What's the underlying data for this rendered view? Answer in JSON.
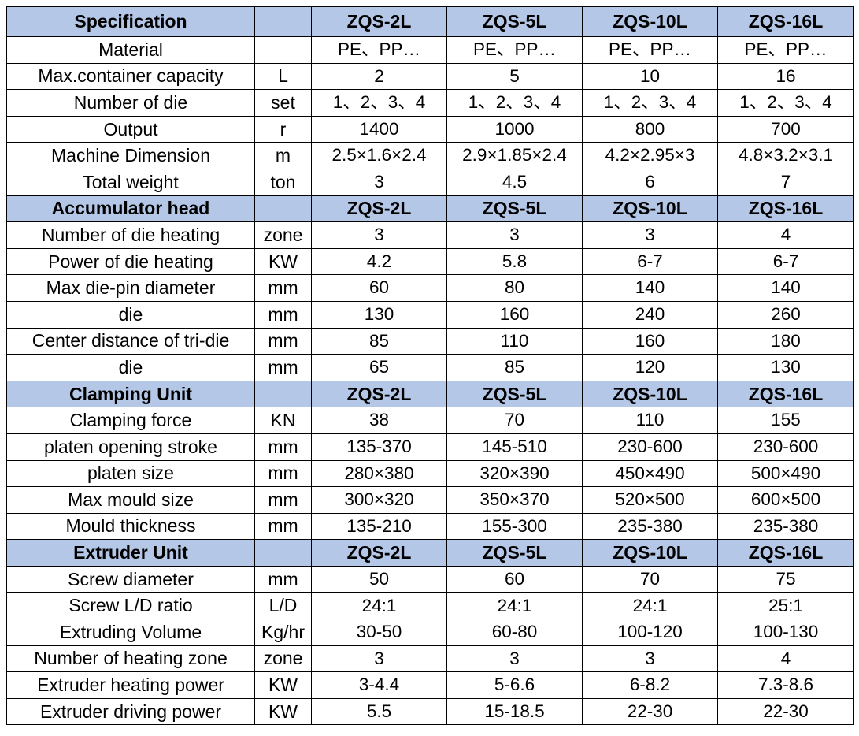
{
  "colors": {
    "header_bg": "#b4c7e7",
    "border": "#000000",
    "text": "#000000"
  },
  "sections": [
    {
      "title": "Specification",
      "unit": "",
      "models": [
        "ZQS-2L",
        "ZQS-5L",
        "ZQS-10L",
        "ZQS-16L"
      ],
      "rows": [
        {
          "param": "Material",
          "unit": "",
          "values": [
            "PE、PP…",
            "PE、PP…",
            "PE、PP…",
            "PE、PP…"
          ]
        },
        {
          "param": "Max.container capacity",
          "unit": "L",
          "values": [
            "2",
            "5",
            "10",
            "16"
          ]
        },
        {
          "param": "Number of die",
          "unit": "set",
          "values": [
            "1、2、3、4",
            "1、2、3、4",
            "1、2、3、4",
            "1、2、3、4"
          ]
        },
        {
          "param": "Output",
          "unit": "r",
          "values": [
            "1400",
            "1000",
            "800",
            "700"
          ]
        },
        {
          "param": "Machine Dimension",
          "unit": "m",
          "values": [
            "2.5×1.6×2.4",
            "2.9×1.85×2.4",
            "4.2×2.95×3",
            "4.8×3.2×3.1"
          ]
        },
        {
          "param": "Total weight",
          "unit": "ton",
          "values": [
            "3",
            "4.5",
            "6",
            "7"
          ]
        }
      ]
    },
    {
      "title": "Accumulator head",
      "unit": "",
      "models": [
        "ZQS-2L",
        "ZQS-5L",
        "ZQS-10L",
        "ZQS-16L"
      ],
      "rows": [
        {
          "param": "Number of die heating",
          "unit": "zone",
          "values": [
            "3",
            "3",
            "3",
            "4"
          ]
        },
        {
          "param": "Power of die heating",
          "unit": "KW",
          "values": [
            "4.2",
            "5.8",
            "6-7",
            "6-7"
          ]
        },
        {
          "param": "Max die-pin diameter",
          "unit": "mm",
          "values": [
            "60",
            "80",
            "140",
            "140"
          ]
        },
        {
          "param": "die",
          "unit": "mm",
          "values": [
            "130",
            "160",
            "240",
            "260"
          ]
        },
        {
          "param": "Center distance of tri-die",
          "unit": "mm",
          "values": [
            "85",
            "110",
            "160",
            "180"
          ]
        },
        {
          "param": "die",
          "unit": "mm",
          "values": [
            "65",
            "85",
            "120",
            "130"
          ]
        }
      ]
    },
    {
      "title": "Clamping Unit",
      "unit": "",
      "models": [
        "ZQS-2L",
        "ZQS-5L",
        "ZQS-10L",
        "ZQS-16L"
      ],
      "rows": [
        {
          "param": "Clamping force",
          "unit": "KN",
          "values": [
            "38",
            "70",
            "110",
            "155"
          ]
        },
        {
          "param": "platen opening stroke",
          "unit": "mm",
          "values": [
            "135-370",
            "145-510",
            "230-600",
            "230-600"
          ]
        },
        {
          "param": "platen size",
          "unit": "mm",
          "values": [
            "280×380",
            "320×390",
            "450×490",
            "500×490"
          ]
        },
        {
          "param": "Max mould size",
          "unit": "mm",
          "values": [
            "300×320",
            "350×370",
            "520×500",
            "600×500"
          ]
        },
        {
          "param": "Mould thickness",
          "unit": "mm",
          "values": [
            "135-210",
            "155-300",
            "235-380",
            "235-380"
          ]
        }
      ]
    },
    {
      "title": "Extruder Unit",
      "unit": "",
      "models": [
        "ZQS-2L",
        "ZQS-5L",
        "ZQS-10L",
        "ZQS-16L"
      ],
      "rows": [
        {
          "param": "Screw diameter",
          "unit": "mm",
          "values": [
            "50",
            "60",
            "70",
            "75"
          ]
        },
        {
          "param": "Screw L/D ratio",
          "unit": "L/D",
          "values": [
            "24:1",
            "24:1",
            "24:1",
            "25:1"
          ]
        },
        {
          "param": "Extruding Volume",
          "unit": "Kg/hr",
          "values": [
            "30-50",
            "60-80",
            "100-120",
            "100-130"
          ]
        },
        {
          "param": "Number of heating zone",
          "unit": "zone",
          "values": [
            "3",
            "3",
            "3",
            "4"
          ]
        },
        {
          "param": "Extruder heating power",
          "unit": "KW",
          "values": [
            "3-4.4",
            "5-6.6",
            "6-8.2",
            "7.3-8.6"
          ]
        },
        {
          "param": "Extruder driving power",
          "unit": "KW",
          "values": [
            "5.5",
            "15-18.5",
            "22-30",
            "22-30"
          ]
        }
      ]
    }
  ]
}
